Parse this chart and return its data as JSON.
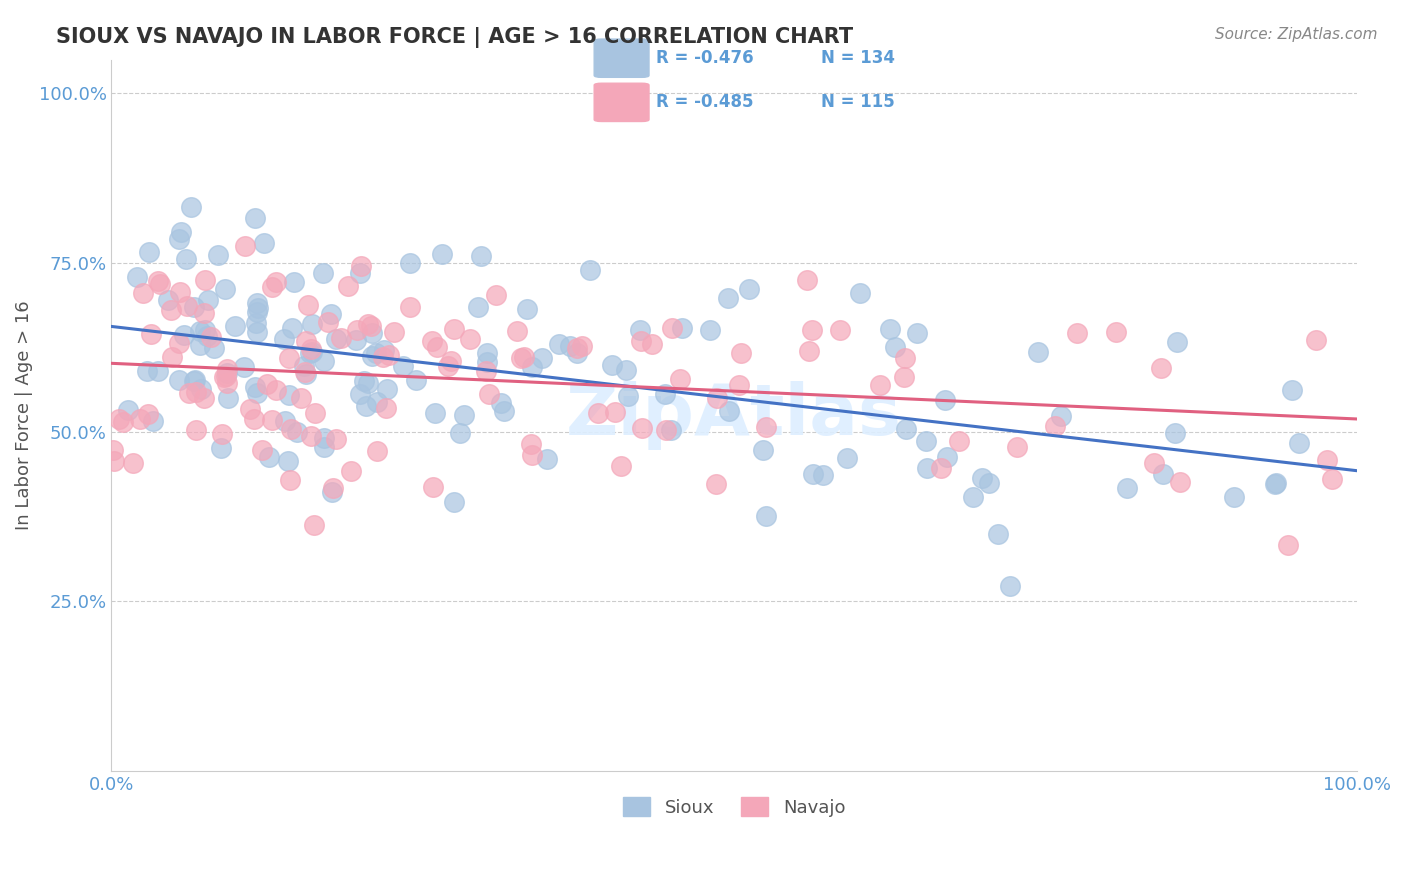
{
  "title": "SIOUX VS NAVAJO IN LABOR FORCE | AGE > 16 CORRELATION CHART",
  "source_text": "Source: ZipAtlas.com",
  "ylabel": "In Labor Force | Age > 16",
  "xlim": [
    0.0,
    1.0
  ],
  "ylim": [
    0.0,
    1.05
  ],
  "sioux_R": -0.476,
  "sioux_N": 134,
  "navajo_R": -0.485,
  "navajo_N": 115,
  "sioux_color": "#a8c4e0",
  "navajo_color": "#f4a7b9",
  "sioux_line_color": "#4472c4",
  "navajo_line_color": "#e06080",
  "background_color": "#ffffff",
  "grid_color": "#cccccc",
  "title_color": "#333333",
  "source_color": "#888888",
  "tick_color": "#5b9bd5",
  "ylabel_color": "#555555",
  "watermark_color": "#ddeeff",
  "legend_text_color": "#5b9bd5"
}
